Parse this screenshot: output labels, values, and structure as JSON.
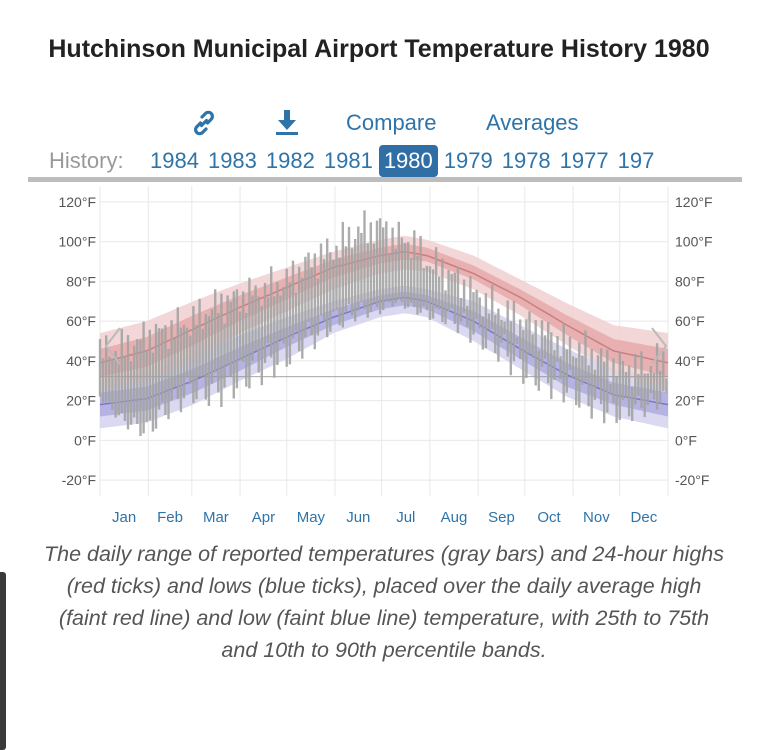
{
  "page": {
    "title": "Hutchinson Municipal Airport Temperature History 1980",
    "toolbar": {
      "link_icon": "link-icon",
      "download_icon": "download-icon",
      "compare_label": "Compare",
      "averages_label": "Averages"
    },
    "history": {
      "label": "History:",
      "years": [
        "1984",
        "1983",
        "1982",
        "1981",
        "1980",
        "1979",
        "1978",
        "1977",
        "197"
      ],
      "selected": "1980"
    },
    "caption": "The daily range of reported temperatures (gray bars) and 24-hour highs (red ticks) and lows (blue ticks), placed over the daily average high (faint red line) and low (faint blue line) temperature, with 25th to 75th and 10th to 90th percentile bands.",
    "nav": {
      "prev_icon": "chevron-left-icon",
      "next_icon": "chevron-right-icon"
    }
  },
  "chart_data": {
    "type": "area",
    "ylim": [
      -28,
      128
    ],
    "y_ticks": [
      120,
      100,
      80,
      60,
      40,
      20,
      0,
      -20
    ],
    "y_tick_labels": [
      "120°F",
      "100°F",
      "80°F",
      "60°F",
      "40°F",
      "20°F",
      "0°F",
      "-20°F"
    ],
    "x_labels": [
      "Jan",
      "Feb",
      "Mar",
      "Apr",
      "May",
      "Jun",
      "Jul",
      "Aug",
      "Sep",
      "Oct",
      "Nov",
      "Dec"
    ],
    "freezing_line": 32,
    "colors": {
      "high_band_outer": "#f1cfd0",
      "high_band_inner": "#e6a9aa",
      "low_band_outer": "#d3d2ef",
      "low_band_inner": "#aeacdf",
      "high_line": "#c97f80",
      "low_line": "#7b78c8",
      "range_bar": "#a3a3a3",
      "grid": "#e8e8e8",
      "axis_text": "#555555",
      "month_text": "#2f74a8"
    },
    "series": [
      {
        "name": "average high",
        "day": [
          0,
          30,
          60,
          90,
          120,
          150,
          180,
          196,
          210,
          240,
          270,
          300,
          330,
          365
        ],
        "p10": [
          26,
          30,
          41,
          54,
          65,
          76,
          84,
          86,
          85,
          76,
          63,
          48,
          34,
          26
        ],
        "p25": [
          32,
          37,
          48,
          60,
          71,
          82,
          89,
          91,
          90,
          81,
          68,
          53,
          39,
          32
        ],
        "avg": [
          39,
          45,
          56,
          67,
          77,
          87,
          93,
          95,
          93,
          84,
          72,
          58,
          45,
          39
        ],
        "p75": [
          46,
          52,
          63,
          73,
          82,
          91,
          97,
          99,
          97,
          88,
          76,
          63,
          51,
          46
        ],
        "p90": [
          54,
          60,
          70,
          79,
          87,
          95,
          101,
          103,
          101,
          93,
          81,
          69,
          58,
          54
        ]
      },
      {
        "name": "average low",
        "day": [
          0,
          30,
          60,
          90,
          120,
          150,
          180,
          196,
          210,
          240,
          270,
          300,
          330,
          365
        ],
        "p10": [
          6,
          9,
          18,
          30,
          41,
          54,
          62,
          64,
          62,
          50,
          36,
          22,
          12,
          6
        ],
        "p25": [
          12,
          15,
          24,
          35,
          47,
          58,
          66,
          68,
          66,
          55,
          41,
          27,
          18,
          12
        ],
        "avg": [
          18,
          21,
          30,
          41,
          52,
          62,
          70,
          72,
          70,
          60,
          46,
          33,
          23,
          18
        ],
        "p75": [
          24,
          27,
          36,
          47,
          57,
          66,
          73,
          75,
          73,
          65,
          52,
          39,
          29,
          24
        ],
        "p90": [
          30,
          34,
          43,
          53,
          62,
          70,
          76,
          78,
          76,
          70,
          58,
          46,
          36,
          30
        ]
      }
    ],
    "daily_range": {
      "name": "reported temperatures",
      "day": [
        0,
        15,
        30,
        45,
        60,
        75,
        90,
        105,
        120,
        135,
        150,
        165,
        180,
        190,
        200,
        210,
        225,
        240,
        255,
        270,
        285,
        300,
        315,
        330,
        345,
        365
      ],
      "low": [
        22,
        10,
        5,
        18,
        26,
        25,
        32,
        38,
        44,
        52,
        60,
        65,
        66,
        70,
        67,
        64,
        62,
        55,
        48,
        38,
        32,
        28,
        20,
        15,
        16,
        22
      ],
      "high": [
        44,
        46,
        52,
        56,
        60,
        68,
        72,
        75,
        80,
        90,
        96,
        105,
        108,
        102,
        100,
        90,
        84,
        74,
        66,
        60,
        55,
        48,
        44,
        38,
        36,
        40
      ]
    }
  }
}
